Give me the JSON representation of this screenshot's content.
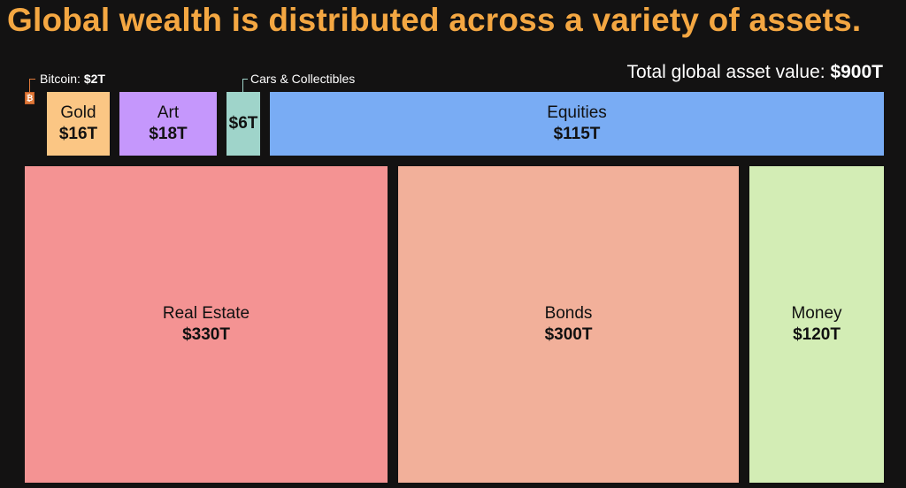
{
  "chart_data": {
    "type": "treemap",
    "title": "Global wealth is distributed across a variety of assets.",
    "total_label": "Total global asset value:",
    "total_value": "$900T",
    "unit": "$T",
    "items": [
      {
        "id": "real-estate",
        "name": "Real Estate",
        "value": 330,
        "value_label": "$330T",
        "color": "#f49393"
      },
      {
        "id": "bonds",
        "name": "Bonds",
        "value": 300,
        "value_label": "$300T",
        "color": "#f2b09a"
      },
      {
        "id": "money",
        "name": "Money",
        "value": 120,
        "value_label": "$120T",
        "color": "#d3edb5"
      },
      {
        "id": "equities",
        "name": "Equities",
        "value": 115,
        "value_label": "$115T",
        "color": "#79acf4"
      },
      {
        "id": "art",
        "name": "Art",
        "value": 18,
        "value_label": "$18T",
        "color": "#c597fc"
      },
      {
        "id": "gold",
        "name": "Gold",
        "value": 16,
        "value_label": "$16T",
        "color": "#fbc684"
      },
      {
        "id": "cars",
        "name": "Cars & Collectibles",
        "value": 6,
        "value_label": "$6T",
        "color": "#9fd4ca"
      },
      {
        "id": "bitcoin",
        "name": "Bitcoin",
        "value": 2,
        "value_label": "$2T",
        "color": "#e07a3a"
      }
    ],
    "callouts": {
      "bitcoin": {
        "label": "Bitcoin:",
        "value": "$2T"
      },
      "cars": {
        "label": "Cars & Collectibles"
      }
    },
    "bitcoin_icon": {
      "icon": "bitcoin-icon",
      "glyph": "₿"
    }
  }
}
